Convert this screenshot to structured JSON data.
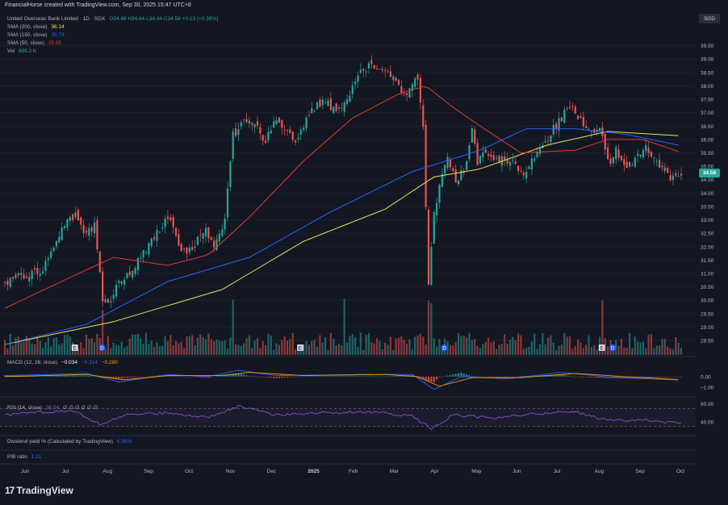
{
  "header": {
    "text": "FinancialHorse created with TradingView.com, Sep 30, 2025 15:47 UTC+8"
  },
  "legend": {
    "symbol": "United Overseas Bank Limited · 1D · SGX",
    "ohlc": "O34.48 H34.64 L34.44 C34.58 +0.13 (+0.38%)",
    "sma200_label": "SMA (200, close)",
    "sma200_value": "36.14",
    "sma150_label": "SMA (150, close)",
    "sma150_value": "35.79",
    "sma50_label": "SMA (50, close)",
    "sma50_value": "35.55",
    "vol_label": "Vol",
    "vol_value": "899.2 K"
  },
  "macd_legend": {
    "label": "MACD (12, 26, close)",
    "hist": "−0.034",
    "macd": "−0.314",
    "signal": "−0.280"
  },
  "rsi_legend": {
    "label": "RSI (14, close)",
    "value": "36.04",
    "dots": "∅ ∅ ∅ ∅ ∅ ∅"
  },
  "div_legend": {
    "label": "Dividend yield % (Calculated by TradingView)",
    "value": "6.56%"
  },
  "pb_legend": {
    "label": "P/B ratio",
    "value": "1.21"
  },
  "currency": "SGD",
  "last_price": "34.58",
  "logo_text": "TradingView",
  "colors": {
    "up": "#26a69a",
    "down": "#ef5350",
    "sma200": "#e8e35a",
    "sma150": "#2962ff",
    "sma50": "#e53935",
    "macd": "#2962ff",
    "signal": "#ff9800",
    "rsi": "#7e57c2"
  },
  "chart_data": {
    "type": "candlestick",
    "title": "United Overseas Bank Limited · 1D · SGX",
    "y_ticks": [
      "39.50",
      "39.00",
      "38.50",
      "38.00",
      "37.50",
      "37.00",
      "36.50",
      "36.00",
      "35.50",
      "35.00",
      "34.50",
      "34.00",
      "33.50",
      "33.00",
      "32.50",
      "32.00",
      "31.50",
      "31.00",
      "30.50",
      "30.00",
      "29.50",
      "29.00",
      "28.50"
    ],
    "ylim": [
      28.2,
      40.0
    ],
    "x_ticks": [
      "Jun",
      "Jul",
      "Aug",
      "Sep",
      "Oct",
      "Nov",
      "Dec",
      "2025",
      "Feb",
      "Mar",
      "Apr",
      "May",
      "Jun",
      "Jul",
      "Aug",
      "Sep",
      "Oct"
    ],
    "x_tick_index": [
      0,
      15,
      30,
      45,
      60,
      75,
      90,
      105,
      120,
      135,
      150,
      165,
      180,
      195,
      210,
      225,
      240
    ],
    "close_path": [
      [
        0,
        30.6
      ],
      [
        5,
        30.9
      ],
      [
        10,
        31.0
      ],
      [
        14,
        31.2
      ],
      [
        18,
        31.9
      ],
      [
        22,
        32.8
      ],
      [
        26,
        33.2
      ],
      [
        30,
        32.4
      ],
      [
        33,
        32.8
      ],
      [
        36,
        30.0
      ],
      [
        38,
        29.8
      ],
      [
        41,
        30.4
      ],
      [
        44,
        30.9
      ],
      [
        48,
        31.3
      ],
      [
        52,
        31.9
      ],
      [
        56,
        32.5
      ],
      [
        60,
        33.1
      ],
      [
        63,
        32.3
      ],
      [
        66,
        31.8
      ],
      [
        70,
        32.1
      ],
      [
        74,
        32.6
      ],
      [
        77,
        32.0
      ],
      [
        79,
        32.5
      ],
      [
        81,
        33.0
      ],
      [
        84,
        36.2
      ],
      [
        88,
        36.6
      ],
      [
        92,
        36.5
      ],
      [
        96,
        36.0
      ],
      [
        100,
        36.7
      ],
      [
        104,
        36.2
      ],
      [
        107,
        35.9
      ],
      [
        110,
        36.6
      ],
      [
        114,
        37.2
      ],
      [
        118,
        37.4
      ],
      [
        122,
        37.0
      ],
      [
        126,
        37.6
      ],
      [
        130,
        38.4
      ],
      [
        134,
        38.8
      ],
      [
        138,
        38.6
      ],
      [
        142,
        38.5
      ],
      [
        146,
        37.7
      ],
      [
        149,
        37.9
      ],
      [
        152,
        38.3
      ],
      [
        154,
        36.5
      ],
      [
        156,
        30.5
      ],
      [
        158,
        33.2
      ],
      [
        160,
        34.2
      ],
      [
        163,
        35.3
      ],
      [
        166,
        34.5
      ],
      [
        169,
        34.9
      ],
      [
        172,
        36.3
      ],
      [
        174,
        35.2
      ],
      [
        177,
        35.5
      ],
      [
        180,
        35.1
      ],
      [
        184,
        35.3
      ],
      [
        188,
        35.0
      ],
      [
        192,
        34.7
      ],
      [
        196,
        35.6
      ],
      [
        200,
        36.1
      ],
      [
        204,
        36.7
      ],
      [
        208,
        37.2
      ],
      [
        212,
        36.8
      ],
      [
        216,
        36.2
      ],
      [
        219,
        36.5
      ],
      [
        222,
        35.1
      ],
      [
        225,
        35.6
      ],
      [
        228,
        35.0
      ],
      [
        232,
        35.3
      ],
      [
        236,
        35.7
      ],
      [
        239,
        35.4
      ],
      [
        242,
        34.9
      ],
      [
        245,
        34.6
      ],
      [
        248,
        34.58
      ]
    ],
    "n_bars": 250,
    "series": [
      {
        "name": "SMA (200, close)",
        "path": [
          [
            0,
            28.35
          ],
          [
            40,
            29.2
          ],
          [
            80,
            30.4
          ],
          [
            110,
            32.2
          ],
          [
            140,
            33.4
          ],
          [
            158,
            34.6
          ],
          [
            175,
            34.9
          ],
          [
            200,
            35.8
          ],
          [
            222,
            36.3
          ],
          [
            248,
            36.14
          ]
        ]
      },
      {
        "name": "SMA (150, close)",
        "path": [
          [
            0,
            28.35
          ],
          [
            30,
            29.1
          ],
          [
            60,
            30.7
          ],
          [
            90,
            31.6
          ],
          [
            120,
            33.3
          ],
          [
            150,
            34.8
          ],
          [
            175,
            35.6
          ],
          [
            192,
            36.4
          ],
          [
            210,
            36.4
          ],
          [
            228,
            36.2
          ],
          [
            248,
            35.79
          ]
        ]
      },
      {
        "name": "SMA (50, close)",
        "path": [
          [
            0,
            29.7
          ],
          [
            25,
            30.9
          ],
          [
            40,
            31.6
          ],
          [
            60,
            31.3
          ],
          [
            75,
            31.7
          ],
          [
            90,
            33.1
          ],
          [
            110,
            35.2
          ],
          [
            128,
            36.8
          ],
          [
            145,
            37.7
          ],
          [
            155,
            38.0
          ],
          [
            165,
            37.2
          ],
          [
            175,
            36.5
          ],
          [
            190,
            35.5
          ],
          [
            210,
            35.6
          ],
          [
            222,
            36.0
          ],
          [
            235,
            36.0
          ],
          [
            248,
            35.55
          ]
        ]
      }
    ],
    "macd": {
      "label": "MACD (12, 26, close)",
      "y_ticks": [
        "0.00",
        "-1.00"
      ],
      "ylim": [
        -1.6,
        0.9
      ],
      "macd_path": [
        [
          0,
          0.1
        ],
        [
          30,
          0.3
        ],
        [
          42,
          -0.5
        ],
        [
          60,
          0.2
        ],
        [
          75,
          0.0
        ],
        [
          86,
          0.6
        ],
        [
          100,
          0.1
        ],
        [
          130,
          0.2
        ],
        [
          150,
          0.2
        ],
        [
          158,
          -1.2
        ],
        [
          168,
          0.0
        ],
        [
          185,
          -0.2
        ],
        [
          205,
          0.4
        ],
        [
          225,
          -0.1
        ],
        [
          248,
          -0.31
        ]
      ],
      "signal_path": [
        [
          0,
          0.0
        ],
        [
          30,
          0.2
        ],
        [
          44,
          -0.3
        ],
        [
          60,
          0.1
        ],
        [
          80,
          0.1
        ],
        [
          90,
          0.4
        ],
        [
          110,
          0.1
        ],
        [
          140,
          0.2
        ],
        [
          152,
          0.0
        ],
        [
          160,
          -0.9
        ],
        [
          172,
          -0.1
        ],
        [
          190,
          -0.1
        ],
        [
          210,
          0.3
        ],
        [
          228,
          0.0
        ],
        [
          248,
          -0.28
        ]
      ]
    },
    "rsi": {
      "label": "RSI (14, close)",
      "y_ticks": [
        "80.00",
        "40.00"
      ],
      "ylim": [
        20,
        90
      ],
      "path": [
        [
          0,
          55
        ],
        [
          10,
          60
        ],
        [
          25,
          65
        ],
        [
          35,
          35
        ],
        [
          45,
          55
        ],
        [
          60,
          60
        ],
        [
          75,
          50
        ],
        [
          86,
          75
        ],
        [
          100,
          55
        ],
        [
          115,
          60
        ],
        [
          135,
          62
        ],
        [
          150,
          52
        ],
        [
          157,
          25
        ],
        [
          165,
          55
        ],
        [
          180,
          48
        ],
        [
          195,
          58
        ],
        [
          210,
          62
        ],
        [
          222,
          42
        ],
        [
          235,
          45
        ],
        [
          248,
          36
        ]
      ]
    }
  }
}
